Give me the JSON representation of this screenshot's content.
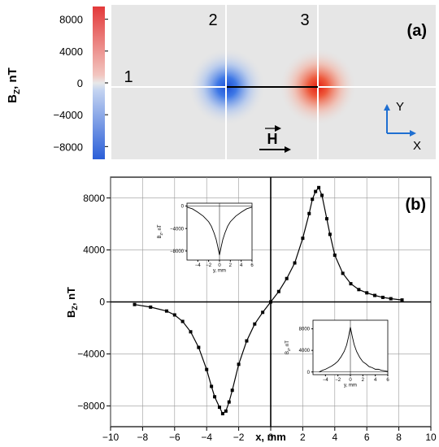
{
  "panel_a": {
    "label": "(a)",
    "colorbar": {
      "axis_label": "B",
      "axis_label_sub": "Z",
      "axis_label_suffix": ", nT",
      "ticks": [
        "8000",
        "4000",
        "0",
        "−4000",
        "−8000"
      ],
      "tick_values": [
        8000,
        4000,
        0,
        -4000,
        -8000
      ],
      "range": [
        -9600,
        9600
      ],
      "colors": {
        "negative": "#2f63d8",
        "zero": "#e3e3e3",
        "positive": "#e83b2b"
      }
    },
    "line_markers": [
      "1",
      "2",
      "3"
    ],
    "field_symbol": "H",
    "axes_legend": {
      "y": "Y",
      "x": "X"
    },
    "map_colors": {
      "background": "#e6e6e6",
      "grid": "#ffffff",
      "axes_arrow": "#1f6fd1"
    }
  },
  "chart_data": [
    {
      "type": "scatter",
      "panel": "(b)",
      "title": "",
      "xlabel": "x, mm",
      "ylabel_main": "B",
      "ylabel_sub": "Z",
      "ylabel_suffix": ", nT",
      "xlim": [
        -10,
        10
      ],
      "ylim": [
        -9600,
        9600
      ],
      "xticks": [
        -10,
        -8,
        -6,
        -4,
        -2,
        0,
        2,
        4,
        6,
        8,
        10
      ],
      "xtick_labels": [
        "−10",
        "−8",
        "−6",
        "−4",
        "−2",
        "0",
        "2",
        "4",
        "6",
        "8",
        "10"
      ],
      "yticks": [
        -8000,
        -4000,
        0,
        4000,
        8000
      ],
      "ytick_labels": [
        "−8000",
        "−4000",
        "0",
        "4000",
        "8000"
      ],
      "grid": true,
      "series": [
        {
          "marker": "square",
          "color": "#000000",
          "x": [
            -8.5,
            -7.5,
            -6.5,
            -6.0,
            -5.5,
            -5.0,
            -4.5,
            -4.0,
            -3.7,
            -3.5,
            -3.2,
            -3.0,
            -2.8,
            -2.6,
            -2.4,
            -2.0,
            -1.5,
            -1.0,
            -0.5,
            0.0,
            0.5,
            1.0,
            1.5,
            2.0,
            2.4,
            2.6,
            2.8,
            3.0,
            3.2,
            3.5,
            3.7,
            4.0,
            4.5,
            5.0,
            5.5,
            6.0,
            6.5,
            7.0,
            7.5,
            8.2
          ],
          "y": [
            -200,
            -400,
            -700,
            -1000,
            -1500,
            -2300,
            -3500,
            -5200,
            -6500,
            -7300,
            -8100,
            -8600,
            -8400,
            -7700,
            -6800,
            -4800,
            -3000,
            -1700,
            -800,
            0,
            800,
            1800,
            3000,
            4900,
            6800,
            7900,
            8500,
            8800,
            8200,
            6400,
            5200,
            3600,
            2200,
            1400,
            950,
            700,
            500,
            350,
            250,
            150
          ]
        }
      ]
    },
    {
      "type": "line",
      "inset": "upper-left",
      "xlabel": "y, mm",
      "ylabel_main": "B",
      "ylabel_sub": "Z",
      "ylabel_suffix": ", nT",
      "xlim": [
        -6,
        6
      ],
      "ylim": [
        -9600,
        500
      ],
      "xticks": [
        -4,
        -2,
        0,
        2,
        4,
        6
      ],
      "xtick_labels": [
        "−4",
        "−2",
        "0",
        "2",
        "4",
        "6"
      ],
      "yticks": [
        0,
        -4000,
        -8000
      ],
      "ytick_labels": [
        "0",
        "−4000",
        "−8000"
      ],
      "series": [
        {
          "color": "#000000",
          "x": [
            -6,
            -5,
            -4,
            -3,
            -2,
            -1.5,
            -1,
            -0.6,
            -0.3,
            0,
            0.3,
            0.6,
            1,
            1.5,
            2,
            3,
            4,
            5,
            6
          ],
          "y": [
            -200,
            -500,
            -1100,
            -1800,
            -2800,
            -3600,
            -4800,
            -6000,
            -7300,
            -8700,
            -7300,
            -6000,
            -4800,
            -3600,
            -2800,
            -1800,
            -1100,
            -500,
            -200
          ]
        }
      ]
    },
    {
      "type": "line",
      "inset": "lower-right",
      "xlabel": "y, mm",
      "ylabel_main": "B",
      "ylabel_sub": "Z",
      "ylabel_suffix": ", nT",
      "xlim": [
        -6,
        6
      ],
      "ylim": [
        -500,
        9600
      ],
      "xticks": [
        -4,
        -2,
        0,
        2,
        4,
        6
      ],
      "xtick_labels": [
        "−4",
        "−2",
        "0",
        "2",
        "4",
        "6"
      ],
      "yticks": [
        0,
        4000,
        8000
      ],
      "ytick_labels": [
        "0",
        "4000",
        "8000"
      ],
      "series": [
        {
          "color": "#000000",
          "x": [
            -5,
            -4.5,
            -4,
            -3.5,
            -3,
            -2.5,
            -2,
            -1.5,
            -1,
            -0.6,
            -0.3,
            0,
            0.3,
            0.6,
            1,
            1.5,
            2,
            2.5,
            3,
            3.5,
            4,
            4.5,
            5,
            5.5,
            6
          ],
          "y": [
            0,
            300,
            500,
            800,
            1100,
            1500,
            2000,
            2800,
            3800,
            5000,
            6500,
            8300,
            6600,
            5100,
            3800,
            2700,
            1900,
            1500,
            1000,
            800,
            500,
            500,
            300,
            200,
            100
          ]
        }
      ]
    }
  ]
}
